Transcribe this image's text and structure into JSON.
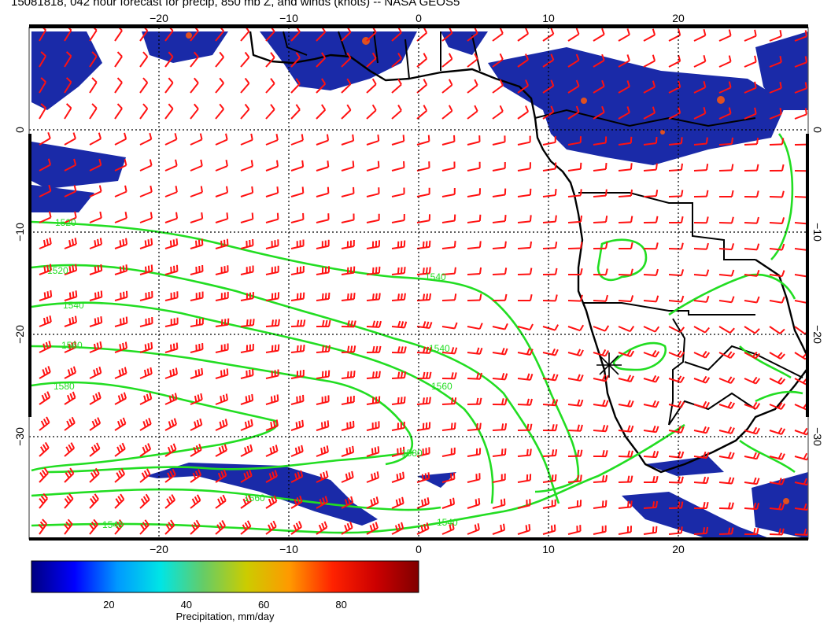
{
  "title": "15081818, 042 hour forecast for precip, 850 mb Z, and winds (knots) -- NASA GEOS5",
  "map": {
    "lon_range": [
      -30,
      30
    ],
    "lat_range": [
      -40,
      10
    ],
    "lon_ticks": [
      {
        "value": -20,
        "label": "−20"
      },
      {
        "value": -10,
        "label": "−10"
      },
      {
        "value": 0,
        "label": "0"
      },
      {
        "value": 10,
        "label": "10"
      },
      {
        "value": 20,
        "label": "20"
      }
    ],
    "lat_ticks": [
      {
        "value": 0,
        "label": "0"
      },
      {
        "value": -10,
        "label": "−10"
      },
      {
        "value": -20,
        "label": "−20"
      },
      {
        "value": -30,
        "label": "−30"
      }
    ],
    "grid_lon": [
      -20,
      -10,
      0,
      10,
      20
    ],
    "grid_lat": [
      0,
      -10,
      -20,
      -30
    ],
    "colors": {
      "coastline": "#000000",
      "contour": "#22dd22",
      "wind": "#ff1111",
      "grid": "#000000"
    },
    "contour_labels": [
      "1520",
      "1520",
      "1540",
      "1560",
      "1580",
      "1540",
      "1540",
      "1560",
      "1580",
      "1560",
      "1540",
      "1540"
    ],
    "marker": {
      "lon": 15,
      "lat": -24,
      "icon": "asterisk-marker-icon"
    }
  },
  "colorbar": {
    "label": "Precipitation, mm/day",
    "ticks": [
      "20",
      "40",
      "60",
      "80"
    ],
    "tick_values": [
      20,
      40,
      60,
      80
    ],
    "range": [
      0,
      100
    ],
    "stops": [
      "#000080",
      "#0000ff",
      "#0099ff",
      "#00e5e5",
      "#66cc66",
      "#cccc00",
      "#ff9900",
      "#ff2200",
      "#cc0000",
      "#800000"
    ]
  }
}
